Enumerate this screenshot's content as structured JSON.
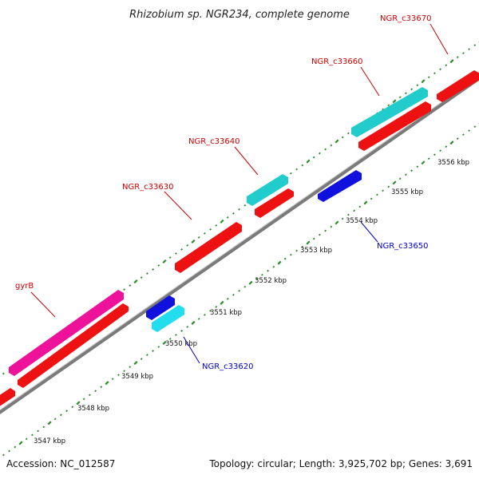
{
  "title": "Rhizobium sp. NGR234, complete genome",
  "footer": {
    "accession": "Accession: NC_012587",
    "summary": "Topology: circular; Length: 3,925,702 bp; Genes: 3,691"
  },
  "colors": {
    "backbone": "#7a7a7a",
    "tick_dots": "#2e8b2e",
    "forward_label": "#cc0000",
    "reverse_label": "#0000cc"
  },
  "scale_labels": [
    "3547 kbp",
    "3548 kbp",
    "3549 kbp",
    "3550 kbp",
    "3551 kbp",
    "3552 kbp",
    "3553 kbp",
    "3554 kbp",
    "3555 kbp",
    "3556 kbp"
  ],
  "genes": [
    {
      "name": "gyrB",
      "color": "#ee1199",
      "kind": "forward-labelled"
    },
    {
      "name": "NGR_c33630",
      "color": "#ee1111",
      "kind": "forward-labelled"
    },
    {
      "name": "NGR_c33640",
      "color": "#22cccc",
      "kind": "forward-labelled"
    },
    {
      "name": "NGR_c33660",
      "color": "#22cccc",
      "kind": "forward-labelled"
    },
    {
      "name": "NGR_c33670",
      "color": "#ee1111",
      "kind": "forward-labelled"
    },
    {
      "name": "NGR_c33620",
      "color": "#22ddee",
      "kind": "reverse-labelled"
    },
    {
      "name": "NGR_c33650",
      "color": "#1111dd",
      "kind": "reverse-labelled"
    }
  ]
}
